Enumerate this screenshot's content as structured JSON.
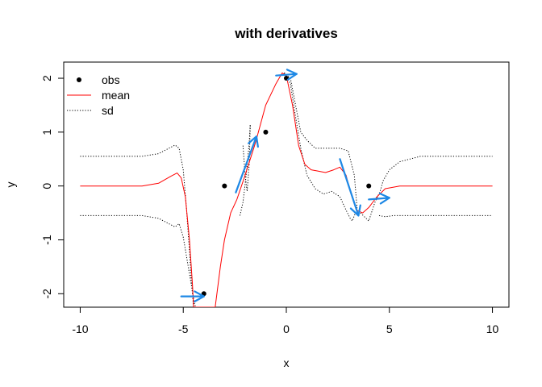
{
  "chart_data": {
    "type": "line",
    "title": "with derivatives",
    "xlabel": "x",
    "ylabel": "y",
    "xlim": [
      -10.8,
      10.8
    ],
    "ylim": [
      -2.25,
      2.3
    ],
    "x_ticks": [
      -10,
      -5,
      0,
      5,
      10
    ],
    "x_tick_labels": [
      "-10",
      "-5",
      "0",
      "5",
      "10"
    ],
    "y_ticks": [
      -2,
      -1,
      0,
      1,
      2
    ],
    "y_tick_labels": [
      "-2",
      "-1",
      "0",
      "1",
      "2"
    ],
    "grid": false,
    "legend": {
      "position": "top-left",
      "entries": [
        {
          "label": "obs",
          "style": "point"
        },
        {
          "label": "mean",
          "style": "solid-line",
          "color": "#ff0000"
        },
        {
          "label": "sd",
          "style": "dotted-line",
          "color": "#000000"
        }
      ]
    },
    "observations": {
      "x": [
        -4,
        -3,
        -1,
        0,
        4
      ],
      "y": [
        -2,
        0,
        1,
        2,
        0
      ]
    },
    "series": [
      {
        "name": "mean",
        "color": "#ff0000",
        "x": [
          -10,
          -7,
          -6.2,
          -5.6,
          -5.3,
          -5.1,
          -4.9,
          -4.7,
          -4.55,
          -4.5,
          -3.45,
          -3.2,
          -3.0,
          -2.7,
          -2.4,
          -2.0,
          -1.5,
          -1.0,
          -0.5,
          -0.2,
          0,
          0.3,
          0.6,
          0.9,
          1.2,
          1.5,
          1.9,
          2.3,
          2.6,
          2.9,
          3.1,
          3.4,
          3.7,
          4.0,
          4.4,
          4.8,
          5.5,
          7,
          10
        ],
        "y": [
          0,
          0,
          0.05,
          0.18,
          0.24,
          0.15,
          -0.2,
          -1.0,
          -1.85,
          -2.25,
          -2.25,
          -1.5,
          -1.0,
          -0.5,
          -0.25,
          0.2,
          0.8,
          1.5,
          1.9,
          2.1,
          2.05,
          1.5,
          0.75,
          0.4,
          0.3,
          0.28,
          0.25,
          0.3,
          0.35,
          0.2,
          -0.1,
          -0.45,
          -0.5,
          -0.4,
          -0.2,
          -0.05,
          0,
          0,
          0
        ]
      },
      {
        "name": "sd",
        "color": "#000000",
        "segments": [
          {
            "x": [
              -10,
              -7,
              -6.2,
              -5.6,
              -5.4,
              -5.2,
              -5.0,
              -4.85,
              -4.7,
              -4.6,
              -4.5
            ],
            "y": [
              0.55,
              0.55,
              0.6,
              0.72,
              0.76,
              0.7,
              0.3,
              -0.4,
              -1.2,
              -1.8,
              -2.25
            ]
          },
          {
            "x": [
              -10,
              -7,
              -6.2,
              -5.6,
              -5.4,
              -5.2,
              -5.0,
              -4.8,
              -4.6,
              -4.45,
              -4.4
            ],
            "y": [
              -0.55,
              -0.55,
              -0.6,
              -0.72,
              -0.76,
              -0.7,
              -0.95,
              -1.4,
              -1.85,
              -2.2,
              -2.25
            ]
          },
          {
            "x": [
              -2.25,
              -2.1,
              -1.95,
              -1.8,
              -1.75
            ],
            "y": [
              -0.55,
              -0.3,
              0.2,
              0.8,
              1.15
            ]
          },
          {
            "x": [
              -2.1,
              -2.0,
              -1.9,
              -1.8,
              -1.75
            ],
            "y": [
              0.75,
              0.2,
              -0.1,
              0.4,
              1.15
            ]
          },
          {
            "x": [
              -0.1,
              0.2,
              0.4,
              0.7,
              1.0,
              1.4,
              1.8,
              2.2,
              2.6,
              3.0,
              3.3,
              3.45
            ],
            "y": [
              2.1,
              2.0,
              1.6,
              1.0,
              0.85,
              0.7,
              0.7,
              0.7,
              0.7,
              0.65,
              0.2,
              -0.5
            ]
          },
          {
            "x": [
              -0.1,
              0.2,
              0.4,
              0.7,
              1.0,
              1.4,
              1.8,
              2.2,
              2.6,
              2.9,
              3.1,
              3.2,
              3.35
            ],
            "y": [
              2.1,
              1.9,
              1.4,
              0.7,
              0.2,
              -0.05,
              -0.15,
              -0.1,
              -0.2,
              -0.45,
              -0.6,
              -0.65,
              -0.5
            ]
          },
          {
            "x": [
              3.6,
              4.0,
              4.3,
              4.55,
              4.7,
              5.0,
              5.5,
              6.5,
              8,
              10
            ],
            "y": [
              -0.5,
              -0.65,
              -0.3,
              -0.1,
              0.1,
              0.3,
              0.45,
              0.55,
              0.55,
              0.55
            ]
          },
          {
            "x": [
              4.5,
              4.8,
              5.2,
              6.0,
              7,
              8.5,
              10
            ],
            "y": [
              -0.55,
              -0.57,
              -0.55,
              -0.55,
              -0.55,
              -0.55,
              -0.55
            ]
          }
        ]
      }
    ],
    "derivative_arrows": {
      "color": "#1e88e5",
      "items": [
        {
          "x0": -5.1,
          "y0": -2.05,
          "x1": -4.0,
          "y1": -2.05
        },
        {
          "x0": -2.45,
          "y0": -0.12,
          "x1": -1.45,
          "y1": 0.92
        },
        {
          "x0": -0.5,
          "y0": 2.05,
          "x1": 0.5,
          "y1": 2.08
        },
        {
          "x0": 2.6,
          "y0": 0.5,
          "x1": 3.5,
          "y1": -0.55
        },
        {
          "x0": 4.0,
          "y0": -0.25,
          "x1": 5.0,
          "y1": -0.22
        }
      ]
    }
  }
}
